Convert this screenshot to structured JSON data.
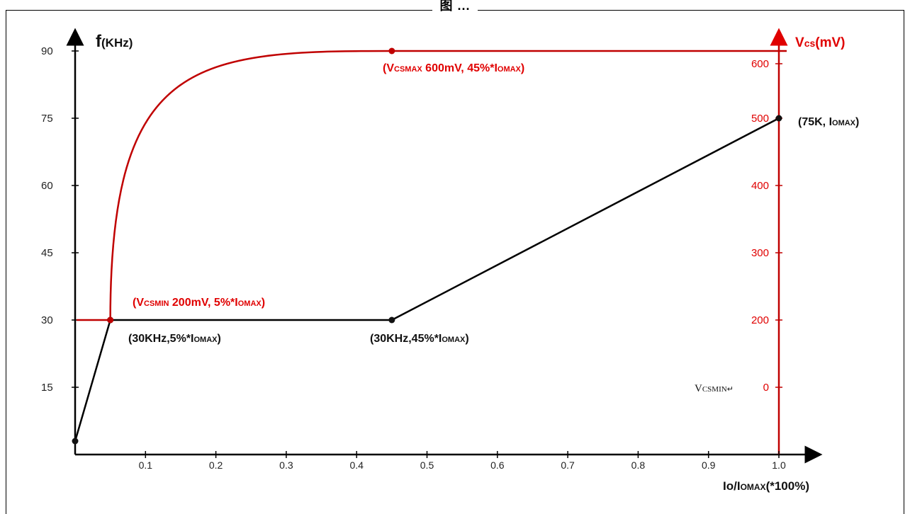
{
  "caption": "图   ...",
  "chart_data": {
    "type": "line",
    "title": "",
    "xlabel": "Io/IOMAX(*100%)",
    "ylabel_left": "f(KHz)",
    "ylabel_right": "Vcs(mV)",
    "xlim": [
      0,
      1.0
    ],
    "xticks": [
      "0.1",
      "0.2",
      "0.3",
      "0.4",
      "0.5",
      "0.6",
      "0.7",
      "0.8",
      "0.9",
      "1.0"
    ],
    "ylim_left": [
      0,
      90
    ],
    "yticks_left": [
      "15",
      "30",
      "45",
      "60",
      "75",
      "90"
    ],
    "ylim_right": [
      0,
      600
    ],
    "yticks_right": [
      "0",
      "200",
      "300",
      "400",
      "500",
      "600"
    ],
    "grid": false,
    "series": [
      {
        "name": "f",
        "color": "#000000",
        "axis": "left",
        "x": [
          0.0,
          0.05,
          0.45,
          1.0
        ],
        "y": [
          3,
          30,
          30,
          75
        ]
      },
      {
        "name": "Vcs",
        "color": "#c00000",
        "axis": "left-scale",
        "x": [
          0.0,
          0.05,
          0.1,
          0.15,
          0.2,
          0.25,
          0.3,
          0.35,
          0.4,
          0.45,
          0.6,
          0.8,
          1.0
        ],
        "y": [
          30,
          30,
          61,
          73,
          80,
          84.5,
          87.3,
          89,
          89.8,
          90,
          90,
          90,
          90
        ]
      }
    ],
    "annotations": {
      "vcsmax": "(VCSMAX 600mV, 45%*IOMAX)",
      "vcsmin": "(VCSMIN 200mV, 5%*IOMAX)",
      "pt_30k_5": "(30KHz,5%*IOMAX)",
      "pt_30k_45": "(30KHz,45%*IOMAX)",
      "pt_75k": "(75K, IOMAX)",
      "vcsmin_note": "VCSMIN↵"
    }
  }
}
